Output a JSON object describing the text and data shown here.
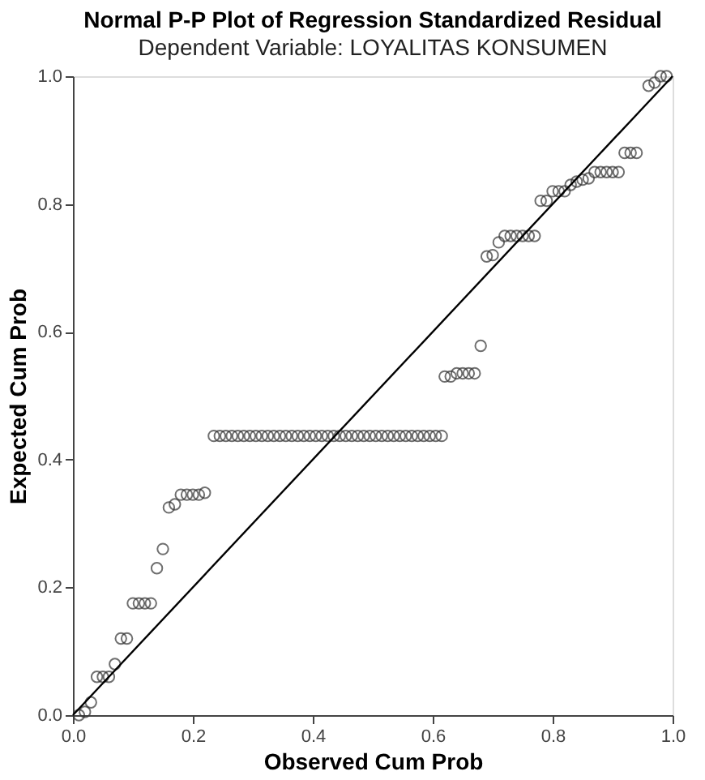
{
  "chart_data": {
    "type": "scatter",
    "title": "Normal P-P Plot of Regression Standardized Residual",
    "subtitle": "Dependent Variable: LOYALITAS KONSUMEN",
    "xlabel": "Observed Cum Prob",
    "ylabel": "Expected Cum Prob",
    "xlim": [
      0,
      1
    ],
    "ylim": [
      0,
      1
    ],
    "xticks": [
      {
        "value": 0,
        "label": "0.0"
      },
      {
        "value": 0.2,
        "label": "0.2"
      },
      {
        "value": 0.4,
        "label": "0.4"
      },
      {
        "value": 0.6,
        "label": "0.6"
      },
      {
        "value": 0.8,
        "label": "0.8"
      },
      {
        "value": 1,
        "label": "1.0"
      }
    ],
    "yticks": [
      {
        "value": 0,
        "label": "0.0"
      },
      {
        "value": 0.2,
        "label": "0.2"
      },
      {
        "value": 0.4,
        "label": "0.4"
      },
      {
        "value": 0.6,
        "label": "0.6"
      },
      {
        "value": 0.8,
        "label": "0.8"
      },
      {
        "value": 1,
        "label": "1.0"
      }
    ],
    "grid": false,
    "marker": "circle",
    "series": [
      {
        "color": "#333333",
        "x": [
          0.01,
          0.02,
          0.03,
          0.04,
          0.05,
          0.06,
          0.07,
          0.08,
          0.09,
          0.1,
          0.11,
          0.12,
          0.13,
          0.14,
          0.15,
          0.16,
          0.17,
          0.18,
          0.19,
          0.2,
          0.21,
          0.22,
          0.235,
          0.245,
          0.255,
          0.265,
          0.275,
          0.285,
          0.295,
          0.305,
          0.315,
          0.325,
          0.335,
          0.345,
          0.355,
          0.365,
          0.375,
          0.385,
          0.395,
          0.405,
          0.415,
          0.425,
          0.435,
          0.445,
          0.455,
          0.465,
          0.475,
          0.485,
          0.495,
          0.505,
          0.515,
          0.525,
          0.535,
          0.545,
          0.555,
          0.565,
          0.575,
          0.585,
          0.595,
          0.605,
          0.615,
          0.62,
          0.63,
          0.64,
          0.65,
          0.66,
          0.67,
          0.68,
          0.69,
          0.7,
          0.71,
          0.72,
          0.73,
          0.74,
          0.75,
          0.76,
          0.77,
          0.78,
          0.79,
          0.8,
          0.81,
          0.82,
          0.83,
          0.84,
          0.85,
          0.86,
          0.87,
          0.88,
          0.89,
          0.9,
          0.91,
          0.92,
          0.93,
          0.94,
          0.96,
          0.97,
          0.98,
          0.99
        ],
        "values": [
          0.0,
          0.005,
          0.02,
          0.06,
          0.06,
          0.06,
          0.08,
          0.12,
          0.12,
          0.175,
          0.175,
          0.175,
          0.175,
          0.23,
          0.26,
          0.325,
          0.33,
          0.345,
          0.345,
          0.345,
          0.345,
          0.348,
          0.437,
          0.437,
          0.437,
          0.437,
          0.437,
          0.437,
          0.437,
          0.437,
          0.437,
          0.437,
          0.437,
          0.437,
          0.437,
          0.437,
          0.437,
          0.437,
          0.437,
          0.437,
          0.437,
          0.437,
          0.437,
          0.437,
          0.437,
          0.437,
          0.437,
          0.437,
          0.437,
          0.437,
          0.437,
          0.437,
          0.437,
          0.437,
          0.437,
          0.437,
          0.437,
          0.437,
          0.437,
          0.437,
          0.437,
          0.53,
          0.53,
          0.535,
          0.535,
          0.535,
          0.535,
          0.578,
          0.718,
          0.72,
          0.74,
          0.75,
          0.75,
          0.75,
          0.75,
          0.75,
          0.75,
          0.805,
          0.805,
          0.82,
          0.82,
          0.82,
          0.83,
          0.835,
          0.838,
          0.84,
          0.85,
          0.85,
          0.85,
          0.85,
          0.85,
          0.88,
          0.88,
          0.88,
          0.985,
          0.99,
          1.0,
          1.0
        ]
      },
      {
        "type": "line",
        "color": "#000000",
        "x": [
          0,
          1
        ],
        "values": [
          0,
          1
        ],
        "marker": "none",
        "line_style": "solid"
      }
    ]
  }
}
